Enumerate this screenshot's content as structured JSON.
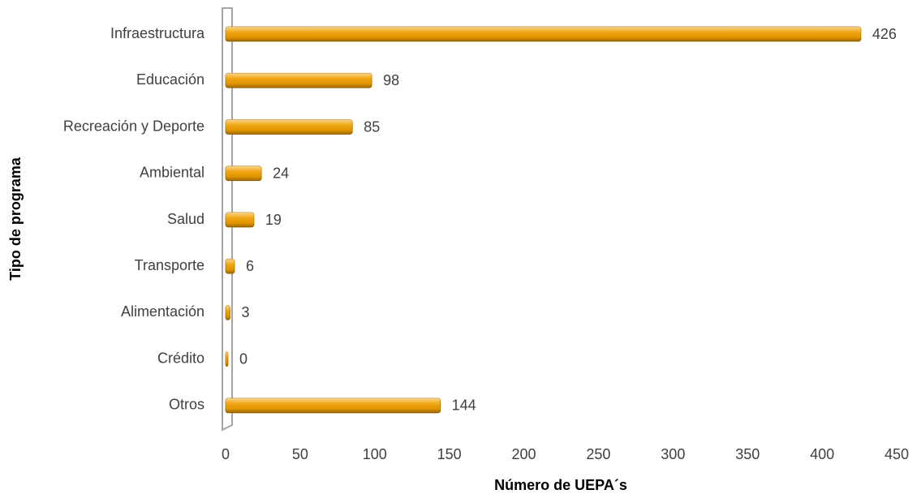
{
  "chart_data": {
    "type": "bar",
    "orientation": "horizontal",
    "x_label": "Número de UEPA´s",
    "y_label": "Tipo de programa",
    "categories": [
      "Infraestructura",
      "Educación",
      "Recreación y Deporte",
      "Ambiental",
      "Salud",
      "Transporte",
      "Alimentación",
      "Crédito",
      "Otros"
    ],
    "values": [
      426,
      98,
      85,
      24,
      19,
      6,
      3,
      0,
      144
    ],
    "color": "#f0a000",
    "xlim": [
      0,
      450
    ],
    "xticks": [
      0,
      50,
      100,
      150,
      200,
      250,
      300,
      350,
      400,
      450
    ],
    "grid": false
  }
}
